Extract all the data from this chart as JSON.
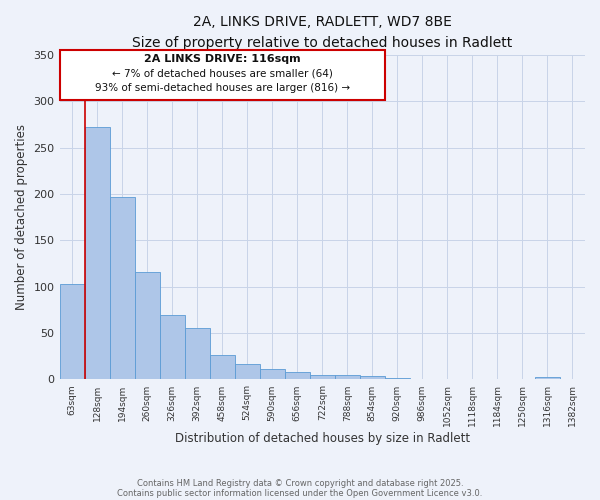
{
  "title": "2A, LINKS DRIVE, RADLETT, WD7 8BE",
  "subtitle": "Size of property relative to detached houses in Radlett",
  "xlabel": "Distribution of detached houses by size in Radlett",
  "ylabel": "Number of detached properties",
  "bin_labels": [
    "63sqm",
    "128sqm",
    "194sqm",
    "260sqm",
    "326sqm",
    "392sqm",
    "458sqm",
    "524sqm",
    "590sqm",
    "656sqm",
    "722sqm",
    "788sqm",
    "854sqm",
    "920sqm",
    "986sqm",
    "1052sqm",
    "1118sqm",
    "1184sqm",
    "1250sqm",
    "1316sqm",
    "1382sqm"
  ],
  "bar_values": [
    103,
    272,
    197,
    116,
    69,
    55,
    26,
    17,
    11,
    8,
    5,
    5,
    4,
    2,
    1,
    1,
    0,
    1,
    0,
    3,
    0
  ],
  "bar_color": "#aec6e8",
  "bar_edgecolor": "#5b9bd5",
  "grid_color": "#c8d4e8",
  "background_color": "#eef2fa",
  "vline_color": "#cc0000",
  "annotation_title": "2A LINKS DRIVE: 116sqm",
  "annotation_line1": "← 7% of detached houses are smaller (64)",
  "annotation_line2": "93% of semi-detached houses are larger (816) →",
  "annotation_box_color": "#ffffff",
  "annotation_border_color": "#cc0000",
  "ylim": [
    0,
    350
  ],
  "yticks": [
    0,
    50,
    100,
    150,
    200,
    250,
    300,
    350
  ],
  "footer1": "Contains HM Land Registry data © Crown copyright and database right 2025.",
  "footer2": "Contains public sector information licensed under the Open Government Licence v3.0."
}
